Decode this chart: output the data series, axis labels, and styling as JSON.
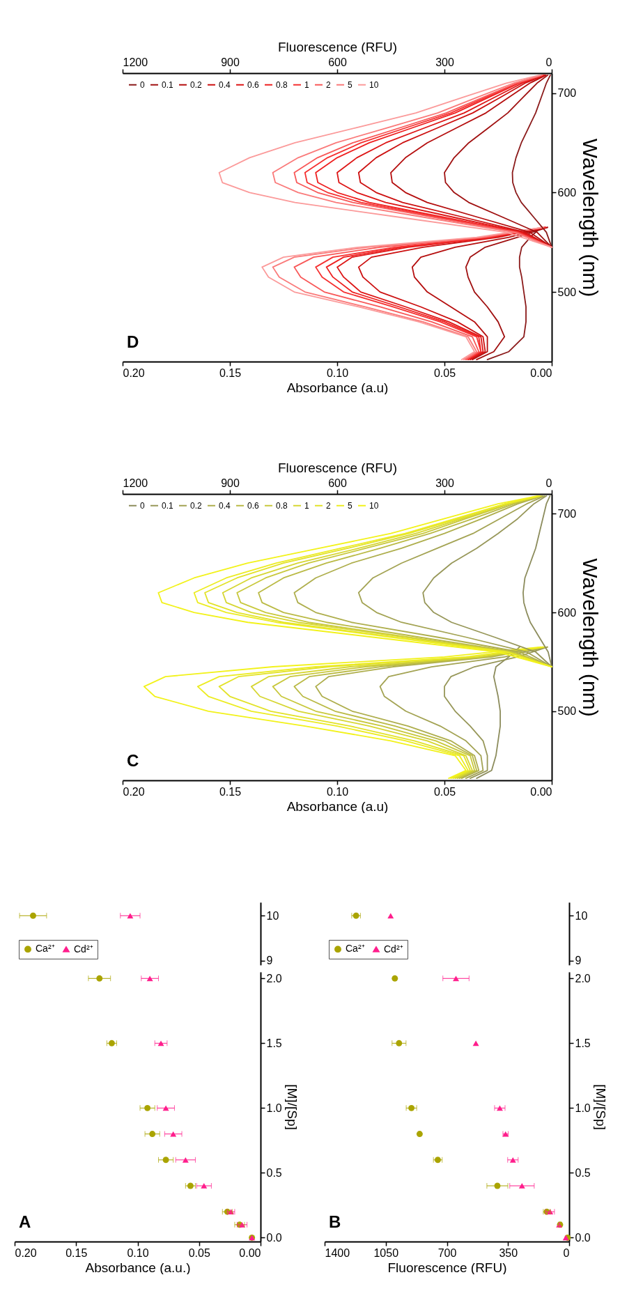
{
  "chart_data": [
    {
      "type": "scatter",
      "title": "A",
      "xlabel": "Absorbance (a.u.)",
      "ylabel": "[M]/[Sp]",
      "xlim": [
        0.2,
        0
      ],
      "xticks": [
        {
          "value": 0,
          "label": "0.00"
        },
        {
          "value": 0.05,
          "label": "0.05"
        },
        {
          "value": 0.1,
          "label": "0.10"
        },
        {
          "value": 0.15,
          "label": "0.15"
        },
        {
          "value": 0.2,
          "label": "0.20"
        }
      ],
      "ylim": [
        -0.03,
        2.05
      ],
      "yticks": [
        {
          "value": 0,
          "label": "0.0"
        },
        {
          "value": 0.5,
          "label": "0.5"
        },
        {
          "value": 1,
          "label": "1.0"
        },
        {
          "value": 1.5,
          "label": "1.5"
        },
        {
          "value": 2,
          "label": "2.0"
        }
      ],
      "series": [
        {
          "color": "#aaa400",
          "marker": "circle",
          "x": [
            0.007,
            0.017,
            0.027,
            0.057,
            0.077,
            0.088,
            0.092,
            0.121,
            0.131
          ],
          "values": [
            0,
            0.1,
            0.2,
            0.4,
            0.6,
            0.8,
            1,
            1.5,
            2
          ],
          "xerrors": [
            null,
            0.004,
            0.004,
            0.004,
            0.006,
            0.006,
            0.006,
            0.004,
            0.009
          ]
        },
        {
          "color": "#ff1e8c",
          "marker": "triangle",
          "x": [
            0.007,
            0.015,
            0.024,
            0.046,
            0.061,
            0.071,
            0.077,
            0.081,
            0.09
          ],
          "values": [
            0,
            0.1,
            0.2,
            0.4,
            0.6,
            0.8,
            1,
            1.5,
            2
          ],
          "xerrors": [
            null,
            0.004,
            0.003,
            0.006,
            0.008,
            0.007,
            0.007,
            0.005,
            0.007
          ]
        }
      ]
    },
    {
      "type": "scatter",
      "xlim": [
        0.2,
        0
      ],
      "ylim": [
        8.9,
        10.3
      ],
      "yticks": [
        9,
        10
      ],
      "tick_labels": "y",
      "legend": "bottom left",
      "series": [
        {
          "name": "Ca²⁺",
          "color": "#aaa400",
          "marker": "circle",
          "x": [
            0.185
          ],
          "values": [
            10
          ],
          "xerrors": [
            0.011
          ]
        },
        {
          "name": "Cd²⁺",
          "color": "#ff1e8c",
          "marker": "triangle",
          "x": [
            0.106
          ],
          "values": [
            10
          ],
          "xerrors": [
            0.008
          ]
        }
      ]
    },
    {
      "type": "scatter",
      "title": "B",
      "xlabel": "Fluorescence (RFU)",
      "ylabel": "[M]/[Sp]",
      "xlim": [
        1400,
        0
      ],
      "xticks": [
        0,
        350,
        700,
        1050,
        1400
      ],
      "ylim": [
        -0.03,
        2.05
      ],
      "yticks": [
        {
          "value": 0,
          "label": "0.0"
        },
        {
          "value": 0.5,
          "label": "0.5"
        },
        {
          "value": 1,
          "label": "1.0"
        },
        {
          "value": 1.5,
          "label": "1.5"
        },
        {
          "value": 2,
          "label": "2.0"
        }
      ],
      "series": [
        {
          "color": "#aaa400",
          "marker": "circle",
          "x": [
            9,
            52,
            128,
            411,
            752,
            856,
            903,
            974,
            998
          ],
          "values": [
            0,
            0.1,
            0.2,
            0.4,
            0.6,
            0.8,
            1,
            1.5,
            2
          ],
          "xerrors": [
            null,
            10,
            20,
            60,
            25,
            null,
            30,
            40,
            null
          ]
        },
        {
          "color": "#ff1e8c",
          "marker": "triangle",
          "x": [
            19,
            57,
            109,
            270,
            322,
            364,
            397,
            534,
            648
          ],
          "values": [
            0,
            0.1,
            0.2,
            0.4,
            0.6,
            0.8,
            1,
            1.5,
            2
          ],
          "xerrors": [
            null,
            null,
            25,
            70,
            30,
            15,
            30,
            null,
            75
          ]
        }
      ]
    },
    {
      "type": "scatter",
      "xlim": [
        1400,
        0
      ],
      "ylim": [
        8.9,
        10.3
      ],
      "yticks": [
        9,
        10
      ],
      "tick_labels": "y",
      "legend": "bottom left",
      "series": [
        {
          "name": "Ca²⁺",
          "color": "#aaa400",
          "marker": "circle",
          "x": [
            1220
          ],
          "values": [
            10
          ],
          "xerrors": [
            25
          ]
        },
        {
          "name": "Cd²⁺",
          "color": "#ff1e8c",
          "marker": "triangle",
          "x": [
            1022
          ],
          "values": [
            10
          ]
        }
      ]
    },
    {
      "type": "line",
      "title": "C",
      "xlabel": "Absorbance (a.u)",
      "x2label": "Fluorescence (RFU)",
      "ylabel": "Wavelength (nm)",
      "xlim": [
        0.2,
        0
      ],
      "xticks": [
        {
          "value": 0,
          "label": "0.00"
        },
        {
          "value": 0.05,
          "label": "0.05"
        },
        {
          "value": 0.1,
          "label": "0.10"
        },
        {
          "value": 0.15,
          "label": "0.15"
        },
        {
          "value": 0.2,
          "label": "0.20"
        }
      ],
      "x2lim": [
        1200,
        0
      ],
      "x2ticks": [
        0,
        300,
        600,
        900,
        1200
      ],
      "ylim": [
        430,
        720
      ],
      "yticks": [
        500,
        600,
        700
      ],
      "legend": "top left",
      "series": [
        {
          "name": "0",
          "color": "#8c8c5c",
          "x": [
            0.035,
            0.028,
            0.026,
            0.025,
            0.024,
            0.024,
            0.025,
            0.026,
            0.027,
            0.026,
            0.02,
            0.015
          ],
          "values": [
            432,
            440,
            455,
            470,
            485,
            500,
            515,
            525,
            535,
            545,
            555,
            565
          ]
        },
        {
          "name": "0.1",
          "color": "#979759",
          "x": [
            0.038,
            0.03,
            0.03,
            0.032,
            0.038,
            0.045,
            0.05,
            0.05,
            0.047,
            0.036,
            0.016,
            0.002
          ],
          "values": [
            432,
            440,
            455,
            470,
            485,
            500,
            515,
            525,
            535,
            545,
            555,
            565
          ]
        },
        {
          "name": "0.2",
          "color": "#a3a353",
          "x": [
            0.04,
            0.032,
            0.033,
            0.04,
            0.052,
            0.068,
            0.078,
            0.08,
            0.076,
            0.056,
            0.022,
            0.002
          ],
          "values": [
            432,
            440,
            455,
            470,
            485,
            500,
            515,
            525,
            535,
            545,
            555,
            565
          ]
        },
        {
          "name": "0.4",
          "color": "#aeae4c",
          "x": [
            0.042,
            0.034,
            0.036,
            0.047,
            0.067,
            0.093,
            0.107,
            0.11,
            0.104,
            0.074,
            0.028,
            0.003
          ],
          "values": [
            432,
            440,
            455,
            470,
            485,
            500,
            515,
            525,
            535,
            545,
            555,
            565
          ]
        },
        {
          "name": "0.6",
          "color": "#baba45",
          "x": [
            0.043,
            0.035,
            0.037,
            0.05,
            0.073,
            0.101,
            0.116,
            0.12,
            0.113,
            0.08,
            0.03,
            0.003
          ],
          "values": [
            432,
            440,
            455,
            470,
            485,
            500,
            515,
            525,
            535,
            545,
            555,
            565
          ]
        },
        {
          "name": "0.8",
          "color": "#c8c83c",
          "x": [
            0.044,
            0.036,
            0.038,
            0.054,
            0.079,
            0.11,
            0.126,
            0.13,
            0.122,
            0.087,
            0.032,
            0.003
          ],
          "values": [
            432,
            440,
            455,
            470,
            485,
            500,
            515,
            525,
            535,
            545,
            555,
            565
          ]
        },
        {
          "name": "1",
          "color": "#d6d632",
          "x": [
            0.045,
            0.037,
            0.04,
            0.058,
            0.085,
            0.118,
            0.136,
            0.14,
            0.132,
            0.094,
            0.034,
            0.003
          ],
          "values": [
            432,
            440,
            455,
            470,
            485,
            500,
            515,
            525,
            535,
            545,
            555,
            565
          ]
        },
        {
          "name": "2",
          "color": "#e2e228",
          "x": [
            0.046,
            0.038,
            0.041,
            0.064,
            0.094,
            0.131,
            0.15,
            0.155,
            0.146,
            0.104,
            0.038,
            0.004
          ],
          "values": [
            432,
            440,
            455,
            470,
            485,
            500,
            515,
            525,
            535,
            545,
            555,
            565
          ]
        },
        {
          "name": "5",
          "color": "#ecec22",
          "x": [
            0.047,
            0.039,
            0.043,
            0.068,
            0.1,
            0.14,
            0.16,
            0.165,
            0.155,
            0.11,
            0.04,
            0.004
          ],
          "values": [
            432,
            440,
            455,
            470,
            485,
            500,
            515,
            525,
            535,
            545,
            555,
            565
          ]
        },
        {
          "name": "10",
          "color": "#f2f21a",
          "x": [
            0.048,
            0.04,
            0.045,
            0.075,
            0.115,
            0.16,
            0.185,
            0.19,
            0.18,
            0.13,
            0.05,
            0.005
          ],
          "values": [
            432,
            440,
            455,
            470,
            485,
            500,
            515,
            525,
            535,
            545,
            555,
            565
          ]
        },
        {
          "color": "#8c8c5c",
          "axis": "x2",
          "x": [
            0,
            10,
            35,
            60,
            70,
            78,
            80,
            75,
            60,
            45,
            35,
            25,
            15,
            5
          ],
          "values": [
            545,
            560,
            575,
            590,
            600,
            610,
            620,
            635,
            650,
            665,
            680,
            695,
            710,
            718
          ]
        },
        {
          "color": "#979759",
          "axis": "x2",
          "x": [
            0,
            45,
            160,
            280,
            330,
            355,
            360,
            330,
            280,
            210,
            150,
            95,
            50,
            15
          ],
          "values": [
            545,
            560,
            575,
            590,
            600,
            610,
            620,
            635,
            650,
            665,
            680,
            695,
            710,
            718
          ]
        },
        {
          "color": "#a3a353",
          "axis": "x2",
          "x": [
            0,
            70,
            240,
            420,
            490,
            530,
            540,
            500,
            420,
            320,
            220,
            145,
            70,
            20
          ],
          "values": [
            545,
            560,
            575,
            590,
            600,
            610,
            620,
            635,
            650,
            665,
            680,
            695,
            710,
            718
          ]
        },
        {
          "color": "#aeae4c",
          "axis": "x2",
          "x": [
            0,
            90,
            320,
            560,
            660,
            710,
            720,
            660,
            560,
            420,
            300,
            195,
            95,
            25
          ],
          "values": [
            545,
            560,
            575,
            590,
            600,
            610,
            620,
            635,
            650,
            665,
            680,
            695,
            710,
            718
          ]
        },
        {
          "color": "#baba45",
          "axis": "x2",
          "x": [
            0,
            105,
            370,
            630,
            750,
            810,
            820,
            750,
            630,
            480,
            340,
            220,
            105,
            28
          ],
          "values": [
            545,
            560,
            575,
            590,
            600,
            610,
            620,
            635,
            650,
            665,
            680,
            695,
            710,
            718
          ]
        },
        {
          "color": "#c8c83c",
          "axis": "x2",
          "x": [
            0,
            115,
            400,
            680,
            800,
            870,
            880,
            800,
            680,
            520,
            360,
            240,
            115,
            30
          ],
          "values": [
            545,
            560,
            575,
            590,
            600,
            610,
            620,
            635,
            650,
            665,
            680,
            695,
            710,
            718
          ]
        },
        {
          "color": "#d6d632",
          "axis": "x2",
          "x": [
            0,
            120,
            410,
            710,
            840,
            910,
            920,
            840,
            710,
            540,
            380,
            250,
            120,
            30
          ],
          "values": [
            545,
            560,
            575,
            590,
            600,
            610,
            620,
            635,
            650,
            665,
            680,
            695,
            710,
            718
          ]
        },
        {
          "color": "#e2e228",
          "axis": "x2",
          "x": [
            0,
            125,
            440,
            750,
            880,
            960,
            970,
            880,
            750,
            570,
            400,
            260,
            130,
            35
          ],
          "values": [
            545,
            560,
            575,
            590,
            600,
            610,
            620,
            635,
            650,
            665,
            680,
            695,
            710,
            718
          ]
        },
        {
          "color": "#ecec22",
          "axis": "x2",
          "x": [
            0,
            130,
            450,
            770,
            910,
            990,
            1000,
            910,
            770,
            590,
            410,
            270,
            130,
            35
          ],
          "values": [
            545,
            560,
            575,
            590,
            600,
            610,
            620,
            635,
            650,
            665,
            680,
            695,
            710,
            718
          ]
        },
        {
          "color": "#f2f21a",
          "axis": "x2",
          "x": [
            0,
            150,
            500,
            850,
            1000,
            1090,
            1100,
            1000,
            850,
            650,
            450,
            300,
            150,
            40
          ],
          "values": [
            545,
            560,
            575,
            590,
            600,
            610,
            620,
            635,
            650,
            665,
            680,
            695,
            710,
            718
          ]
        }
      ]
    },
    {
      "type": "line",
      "title": "D",
      "xlabel": "Absorbance (a.u)",
      "x2label": "Fluorescence (RFU)",
      "ylabel": "Wavelength (nm)",
      "xlim": [
        0.2,
        0
      ],
      "xticks": [
        {
          "value": 0,
          "label": "0.00"
        },
        {
          "value": 0.05,
          "label": "0.05"
        },
        {
          "value": 0.1,
          "label": "0.10"
        },
        {
          "value": 0.15,
          "label": "0.15"
        },
        {
          "value": 0.2,
          "label": "0.20"
        }
      ],
      "x2lim": [
        1200,
        0
      ],
      "x2ticks": [
        0,
        300,
        600,
        900,
        1200
      ],
      "ylim": [
        430,
        720
      ],
      "yticks": [
        500,
        600,
        700
      ],
      "legend": "top left",
      "series": [
        {
          "name": "0",
          "color": "#8b1a1a",
          "x": [
            0.03,
            0.02,
            0.013,
            0.012,
            0.012,
            0.013,
            0.014,
            0.015,
            0.015,
            0.014,
            0.01,
            0.005
          ],
          "values": [
            432,
            440,
            455,
            470,
            485,
            500,
            515,
            525,
            535,
            545,
            555,
            565
          ]
        },
        {
          "name": "0.1",
          "color": "#a01010",
          "x": [
            0.035,
            0.027,
            0.022,
            0.025,
            0.03,
            0.036,
            0.039,
            0.04,
            0.038,
            0.031,
            0.016,
            0.002
          ],
          "values": [
            432,
            440,
            455,
            470,
            485,
            500,
            515,
            525,
            535,
            545,
            555,
            565
          ]
        },
        {
          "name": "0.2",
          "color": "#b50e0e",
          "x": [
            0.037,
            0.03,
            0.03,
            0.036,
            0.047,
            0.058,
            0.064,
            0.065,
            0.061,
            0.045,
            0.02,
            0.002
          ],
          "values": [
            432,
            440,
            455,
            470,
            485,
            500,
            515,
            525,
            535,
            545,
            555,
            565
          ]
        },
        {
          "name": "0.4",
          "color": "#cc1010",
          "x": [
            0.038,
            0.031,
            0.032,
            0.044,
            0.061,
            0.08,
            0.088,
            0.09,
            0.084,
            0.06,
            0.025,
            0.003
          ],
          "values": [
            432,
            440,
            455,
            470,
            485,
            500,
            515,
            525,
            535,
            545,
            555,
            565
          ]
        },
        {
          "name": "0.6",
          "color": "#dd1515",
          "x": [
            0.039,
            0.032,
            0.033,
            0.048,
            0.068,
            0.089,
            0.097,
            0.1,
            0.093,
            0.067,
            0.027,
            0.003
          ],
          "values": [
            432,
            440,
            455,
            470,
            485,
            500,
            515,
            525,
            535,
            545,
            555,
            565
          ]
        },
        {
          "name": "0.8",
          "color": "#ee2020",
          "x": [
            0.039,
            0.033,
            0.034,
            0.05,
            0.071,
            0.093,
            0.102,
            0.105,
            0.097,
            0.07,
            0.028,
            0.003
          ],
          "values": [
            432,
            440,
            455,
            470,
            485,
            500,
            515,
            525,
            535,
            545,
            555,
            565
          ]
        },
        {
          "name": "1",
          "color": "#f53030",
          "x": [
            0.04,
            0.033,
            0.035,
            0.052,
            0.074,
            0.097,
            0.107,
            0.11,
            0.102,
            0.073,
            0.029,
            0.003
          ],
          "values": [
            432,
            440,
            455,
            470,
            485,
            500,
            515,
            525,
            535,
            545,
            555,
            565
          ]
        },
        {
          "name": "2",
          "color": "#f85858",
          "x": [
            0.04,
            0.034,
            0.037,
            0.056,
            0.08,
            0.106,
            0.117,
            0.12,
            0.111,
            0.08,
            0.031,
            0.004
          ],
          "values": [
            432,
            440,
            455,
            470,
            485,
            500,
            515,
            525,
            535,
            545,
            555,
            565
          ]
        },
        {
          "name": "5",
          "color": "#fa7a7a",
          "x": [
            0.041,
            0.035,
            0.039,
            0.06,
            0.087,
            0.115,
            0.127,
            0.13,
            0.12,
            0.086,
            0.033,
            0.004
          ],
          "values": [
            432,
            440,
            455,
            470,
            485,
            500,
            515,
            525,
            535,
            545,
            555,
            565
          ]
        },
        {
          "name": "10",
          "color": "#fb9a9a",
          "x": [
            0.042,
            0.036,
            0.04,
            0.062,
            0.09,
            0.12,
            0.132,
            0.135,
            0.125,
            0.09,
            0.035,
            0.004
          ],
          "values": [
            432,
            440,
            455,
            470,
            485,
            500,
            515,
            525,
            535,
            545,
            555,
            565
          ]
        },
        {
          "color": "#8b1a1a",
          "axis": "x2",
          "x": [
            0,
            15,
            50,
            85,
            100,
            109,
            110,
            100,
            85,
            65,
            45,
            30,
            15,
            4
          ],
          "values": [
            545,
            560,
            575,
            590,
            600,
            610,
            620,
            635,
            650,
            665,
            680,
            695,
            710,
            718
          ]
        },
        {
          "color": "#a01010",
          "axis": "x2",
          "x": [
            0,
            41,
            136,
            232,
            273,
            297,
            300,
            273,
            232,
            177,
            123,
            82,
            41,
            11
          ],
          "values": [
            545,
            560,
            575,
            590,
            600,
            610,
            620,
            635,
            650,
            665,
            680,
            695,
            710,
            718
          ]
        },
        {
          "color": "#b50e0e",
          "axis": "x2",
          "x": [
            0,
            61,
            205,
            348,
            409,
            446,
            450,
            409,
            348,
            266,
            184,
            123,
            61,
            16
          ],
          "values": [
            545,
            560,
            575,
            590,
            600,
            610,
            620,
            635,
            650,
            665,
            680,
            695,
            710,
            718
          ]
        },
        {
          "color": "#cc1010",
          "axis": "x2",
          "x": [
            0,
            74,
            245,
            417,
            491,
            535,
            540,
            491,
            417,
            319,
            221,
            147,
            74,
            20
          ],
          "values": [
            545,
            560,
            575,
            590,
            600,
            610,
            620,
            635,
            650,
            665,
            680,
            695,
            710,
            718
          ]
        },
        {
          "color": "#dd1515",
          "axis": "x2",
          "x": [
            0,
            82,
            273,
            464,
            545,
            595,
            600,
            545,
            464,
            355,
            245,
            164,
            82,
            22
          ],
          "values": [
            545,
            560,
            575,
            590,
            600,
            610,
            620,
            635,
            650,
            665,
            680,
            695,
            710,
            718
          ]
        },
        {
          "color": "#ee2020",
          "axis": "x2",
          "x": [
            0,
            90,
            300,
            510,
            600,
            654,
            660,
            600,
            510,
            390,
            270,
            180,
            90,
            24
          ],
          "values": [
            545,
            560,
            575,
            590,
            600,
            610,
            620,
            635,
            650,
            665,
            680,
            695,
            710,
            718
          ]
        },
        {
          "color": "#f53030",
          "axis": "x2",
          "x": [
            0,
            94,
            314,
            533,
            627,
            684,
            690,
            627,
            533,
            408,
            282,
            188,
            94,
            25
          ],
          "values": [
            545,
            560,
            575,
            590,
            600,
            610,
            620,
            635,
            650,
            665,
            680,
            695,
            710,
            718
          ]
        },
        {
          "color": "#f85858",
          "axis": "x2",
          "x": [
            0,
            98,
            327,
            556,
            655,
            713,
            720,
            655,
            556,
            425,
            295,
            196,
            98,
            26
          ],
          "values": [
            545,
            560,
            575,
            590,
            600,
            610,
            620,
            635,
            650,
            665,
            680,
            695,
            710,
            718
          ]
        },
        {
          "color": "#fa7a7a",
          "axis": "x2",
          "x": [
            0,
            106,
            355,
            603,
            709,
            773,
            780,
            709,
            603,
            461,
            319,
            213,
            106,
            28
          ],
          "values": [
            545,
            560,
            575,
            590,
            600,
            610,
            620,
            635,
            650,
            665,
            680,
            695,
            710,
            718
          ]
        },
        {
          "color": "#fb9a9a",
          "axis": "x2",
          "x": [
            0,
            127,
            423,
            718,
            845,
            921,
            930,
            845,
            718,
            549,
            380,
            254,
            127,
            34
          ],
          "values": [
            545,
            560,
            575,
            590,
            600,
            610,
            620,
            635,
            650,
            665,
            680,
            695,
            710,
            718
          ]
        }
      ]
    }
  ]
}
